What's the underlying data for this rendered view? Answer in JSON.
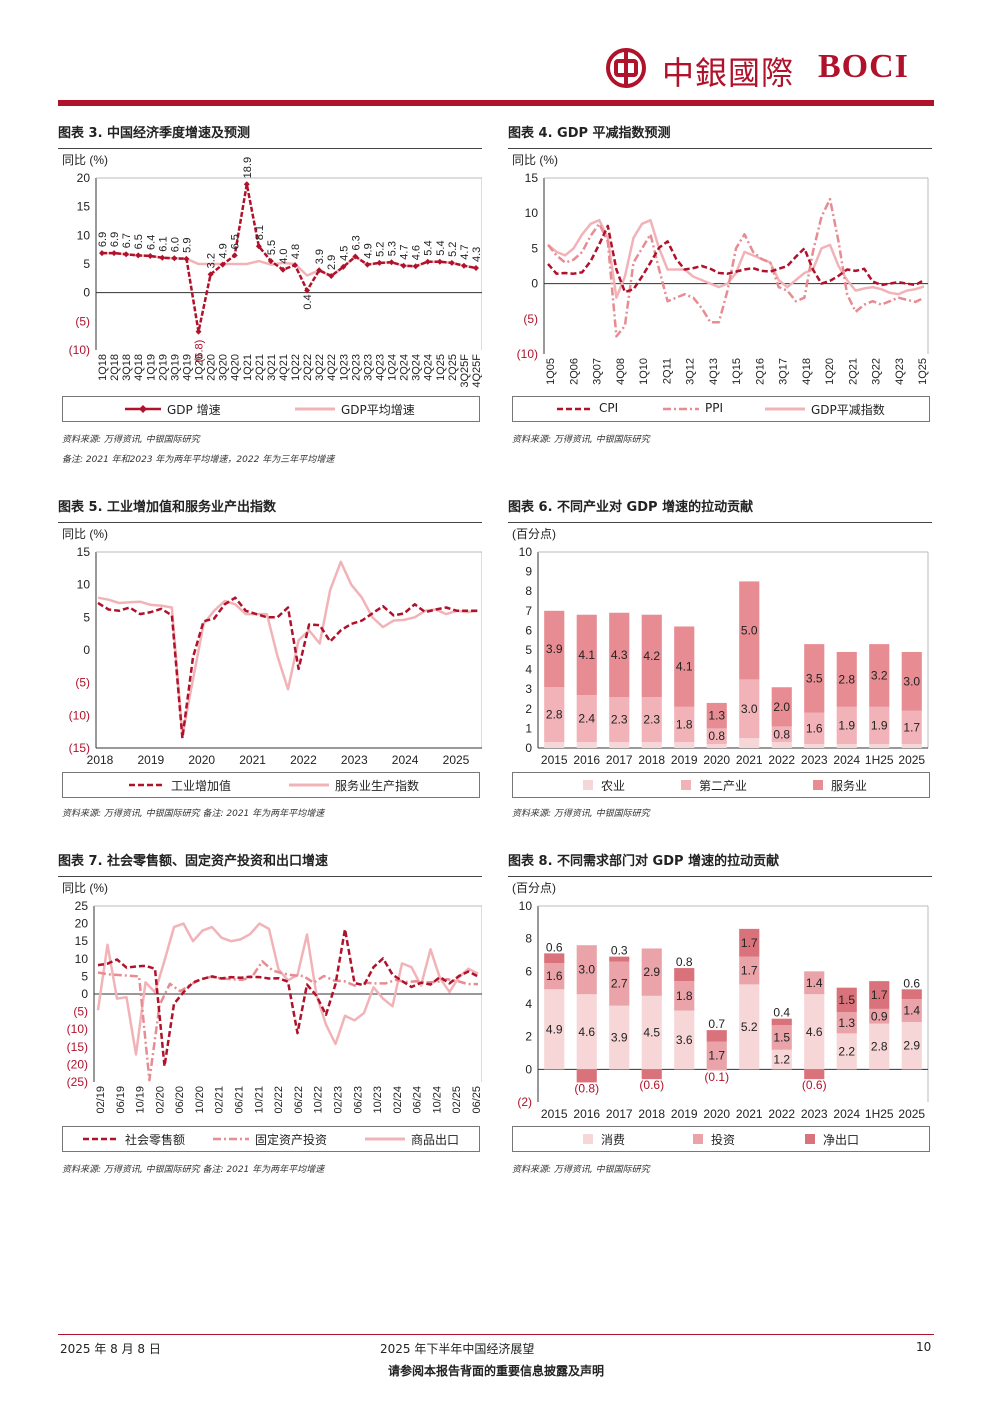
{
  "header": {
    "logo_cn": "中銀國際",
    "logo_en": "BOCI"
  },
  "footer": {
    "date": "2025 年 8 月 8 日",
    "title": "2025 年下半年中国经济展望",
    "page": "10",
    "disclaimer": "请参阅本报告背面的重要信息披露及声明"
  },
  "colors": {
    "primary": "#b0122b",
    "light": "#f2b3b8",
    "mid": "#e78c92",
    "pale": "#f7d6d8"
  },
  "charts": [
    {
      "title": "图表 3. 中国经济季度增速及预测",
      "unit": "同比 (%)",
      "source": "资料来源: 万得资讯, 中银国际研究",
      "note": "备注: 2021 年和2023 年为两年平均增速，2022 年为三年平均增速",
      "legend": [
        "GDP 增速",
        "GDP平均增速"
      ]
    },
    {
      "title": "图表 4. GDP 平减指数预测",
      "unit": "同比 (%)",
      "source": "资料来源: 万得资讯, 中银国际研究",
      "legend": [
        "CPI",
        "PPI",
        "GDP平减指数"
      ]
    },
    {
      "title": "图表 5. 工业增加值和服务业产出指数",
      "unit": "同比 (%)",
      "source": "资料来源: 万得资讯, 中银国际研究 备注: 2021 年为两年平均增速",
      "legend": [
        "工业增加值",
        "服务业生产指数"
      ]
    },
    {
      "title": "图表 6. 不同产业对 GDP 增速的拉动贡献",
      "unit": "(百分点)",
      "source": "资料来源: 万得资讯, 中银国际研究",
      "legend": [
        "农业",
        "第二产业",
        "服务业"
      ]
    },
    {
      "title": "图表 7. 社会零售额、固定资产投资和出口增速",
      "unit": "同比 (%)",
      "source": "资料来源: 万得资讯, 中银国际研究 备注: 2021 年为两年平均增速",
      "legend": [
        "社会零售额",
        "固定资产投资",
        "商品出口"
      ]
    },
    {
      "title": "图表 8. 不同需求部门对 GDP 增速的拉动贡献",
      "unit": "(百分点)",
      "source": "资料来源: 万得资讯, 中银国际研究",
      "legend": [
        "消费",
        "投资",
        "净出口"
      ]
    }
  ],
  "chart_data": [
    {
      "type": "line",
      "title": "图表 3. 中国经济季度增速及预测",
      "ylabel": "同比 (%)",
      "ylim": [
        -10,
        20
      ],
      "yticks": [
        "20",
        "15",
        "10",
        "5",
        "0",
        "(5)",
        "(10)"
      ],
      "x": [
        "1Q18",
        "2Q18",
        "3Q18",
        "4Q18",
        "1Q19",
        "2Q19",
        "3Q19",
        "4Q19",
        "1Q20",
        "2Q20",
        "3Q20",
        "4Q20",
        "1Q21",
        "2Q21",
        "3Q21",
        "4Q21",
        "1Q22",
        "2Q22",
        "3Q22",
        "4Q22",
        "1Q23",
        "2Q23",
        "3Q23",
        "4Q23",
        "1Q24",
        "2Q24",
        "3Q24",
        "4Q24",
        "1Q25",
        "2Q25",
        "3Q25F",
        "4Q25F"
      ],
      "series": [
        {
          "name": "GDP 增速",
          "values": [
            6.9,
            6.9,
            6.7,
            6.5,
            6.4,
            6.1,
            6.0,
            5.9,
            -6.8,
            3.2,
            4.9,
            6.5,
            18.9,
            8.1,
            5.5,
            4.0,
            4.8,
            0.4,
            3.9,
            2.9,
            4.5,
            6.3,
            4.9,
            5.2,
            5.3,
            4.7,
            4.6,
            5.4,
            5.4,
            5.2,
            4.7,
            4.3
          ]
        },
        {
          "name": "GDP平均增速",
          "values": [
            6.9,
            6.9,
            6.7,
            6.5,
            6.4,
            6.1,
            6.0,
            5.9,
            5.0,
            5.0,
            5.0,
            5.0,
            5.0,
            5.5,
            4.9,
            5.2,
            5.0,
            3.0,
            3.9,
            2.9,
            4.5,
            6.3,
            4.9,
            5.2,
            5.3,
            4.7,
            4.6,
            5.4,
            5.4,
            5.2,
            4.7,
            4.3
          ]
        }
      ],
      "labels": [
        "6.9",
        "6.9",
        "6.7",
        "6.5",
        "6.4",
        "6.1",
        "6.0",
        "5.9",
        "(6.8)",
        "3.2",
        "4.9",
        "6.5",
        "18.9",
        "8.1",
        "5.5",
        "4.0",
        "4.8",
        "0.4",
        "3.9",
        "2.9",
        "4.5",
        "6.3",
        "4.9",
        "5.2",
        "5.3",
        "4.7",
        "4.6",
        "5.4",
        "5.4",
        "5.2",
        "4.7",
        "4.3"
      ]
    },
    {
      "type": "line",
      "title": "图表 4. GDP 平减指数预测",
      "ylim": [
        -10,
        15
      ],
      "yticks": [
        "15",
        "10",
        "5",
        "0",
        "(5)",
        "(10)"
      ],
      "xticks": [
        "1Q05",
        "2Q06",
        "3Q07",
        "4Q08",
        "1Q10",
        "2Q11",
        "3Q12",
        "4Q13",
        "1Q15",
        "2Q16",
        "3Q17",
        "4Q18",
        "1Q20",
        "2Q21",
        "3Q22",
        "4Q23",
        "1Q25"
      ],
      "series": [
        {
          "name": "CPI",
          "values": [
            2.8,
            1.4,
            1.5,
            1.4,
            1.6,
            3.2,
            5.6,
            8.2,
            2.0,
            -1.2,
            -0.8,
            1.0,
            3.0,
            5.1,
            6.0,
            3.5,
            2.0,
            2.2,
            2.5,
            2.1,
            1.5,
            1.4,
            1.7,
            2.0,
            2.2,
            1.8,
            1.7,
            2.1,
            2.5,
            3.8,
            5.0,
            2.0,
            0.0,
            0.4,
            1.1,
            2.0,
            1.8,
            2.1,
            0.3,
            -0.2,
            0.0,
            0.2,
            0.0,
            -0.2,
            0.5
          ]
        },
        {
          "name": "PPI",
          "values": [
            5.5,
            4.0,
            3.0,
            3.4,
            4.5,
            6.8,
            8.5,
            6.0,
            -7.5,
            -6.0,
            3.0,
            5.0,
            7.0,
            2.0,
            -2.5,
            -2.0,
            -1.5,
            -2.0,
            -3.5,
            -5.5,
            -5.5,
            -1.0,
            5.0,
            7.0,
            4.5,
            3.5,
            3.0,
            -0.5,
            -1.0,
            -2.5,
            -2.0,
            4.5,
            9.5,
            12.0,
            6.0,
            -1.5,
            -4.0,
            -3.0,
            -2.5,
            -3.0,
            -2.5,
            -2.0,
            -2.3,
            -2.6,
            -2.0
          ]
        },
        {
          "name": "GDP平减指数",
          "values": [
            5.5,
            4.5,
            4.0,
            5.0,
            7.0,
            8.5,
            9.0,
            6.5,
            -2.0,
            1.0,
            6.5,
            8.5,
            9.0,
            5.0,
            2.0,
            2.0,
            2.0,
            1.0,
            0.5,
            0.0,
            -0.5,
            0.0,
            1.5,
            4.5,
            4.0,
            3.5,
            3.0,
            0.5,
            -0.5,
            0.5,
            1.5,
            2.0,
            5.0,
            5.5,
            2.5,
            0.5,
            -1.0,
            -0.7,
            -0.5,
            -0.8,
            -1.3,
            -1.5,
            -1.0,
            -0.8,
            -0.4
          ]
        }
      ]
    },
    {
      "type": "line",
      "title": "图表 5. 工业增加值和服务业产出指数",
      "ylabel": "同比 (%)",
      "ylim": [
        -15,
        15
      ],
      "yticks": [
        "15",
        "10",
        "5",
        "0",
        "(5)",
        "(10)",
        "(15)"
      ],
      "xticks": [
        "2018",
        "2019",
        "2020",
        "2021",
        "2022",
        "2023",
        "2024",
        "2025"
      ],
      "series": [
        {
          "name": "工业增加值",
          "values": [
            7.2,
            6.2,
            6.0,
            6.5,
            5.5,
            5.8,
            6.3,
            5.3,
            -13.5,
            -1.1,
            4.4,
            4.8,
            7.0,
            8.0,
            6.0,
            5.5,
            5.0,
            5.0,
            6.5,
            -2.9,
            3.9,
            3.8,
            1.3,
            3.0,
            4.0,
            4.5,
            5.6,
            6.7,
            5.3,
            5.6,
            7.0,
            5.8,
            6.2,
            6.5,
            6.0,
            6.0,
            6.0
          ]
        },
        {
          "name": "服务业生产指数",
          "values": [
            8.0,
            7.7,
            7.2,
            7.3,
            7.4,
            6.9,
            6.8,
            6.5,
            -13.0,
            -4.5,
            4.0,
            6.0,
            7.5,
            7.0,
            5.5,
            5.5,
            5.5,
            -0.9,
            -6.0,
            1.5,
            3.0,
            1.0,
            9.2,
            13.5,
            10.0,
            8.0,
            5.0,
            3.5,
            4.5,
            4.6,
            5.0,
            6.0,
            6.2,
            5.5,
            6.0,
            5.8,
            6.0
          ]
        }
      ]
    },
    {
      "type": "bar",
      "title": "图表 6. 不同产业对 GDP 增速的拉动贡献",
      "ylabel": "(百分点)",
      "ylim": [
        0,
        10
      ],
      "categories": [
        "2015",
        "2016",
        "2017",
        "2018",
        "2019",
        "2020",
        "2021",
        "2022",
        "2023",
        "2024",
        "1H25",
        "2025"
      ],
      "series": [
        {
          "name": "农业",
          "values": [
            0.3,
            0.3,
            0.3,
            0.3,
            0.3,
            0.2,
            0.5,
            0.3,
            0.2,
            0.2,
            0.2,
            0.2
          ]
        },
        {
          "name": "第二产业",
          "values": [
            2.8,
            2.4,
            2.3,
            2.3,
            1.8,
            0.8,
            3.0,
            0.8,
            1.6,
            1.9,
            1.9,
            1.7
          ]
        },
        {
          "name": "服务业",
          "values": [
            3.9,
            4.1,
            4.3,
            4.2,
            4.1,
            1.3,
            5.0,
            2.0,
            3.5,
            2.8,
            3.2,
            3.0
          ]
        }
      ]
    },
    {
      "type": "line",
      "title": "图表 7. 社会零售额、固定资产投资和出口增速",
      "ylabel": "同比 (%)",
      "ylim": [
        -25,
        25
      ],
      "yticks": [
        "25",
        "20",
        "15",
        "10",
        "5",
        "0",
        "(5)",
        "(10)",
        "(15)",
        "(20)",
        "(25)"
      ],
      "xticks": [
        "02/19",
        "06/19",
        "10/19",
        "02/20",
        "06/20",
        "10/20",
        "02/21",
        "06/21",
        "10/21",
        "02/22",
        "06/22",
        "10/22",
        "02/23",
        "06/23",
        "10/23",
        "02/24",
        "06/24",
        "10/24",
        "02/25",
        "06/25"
      ],
      "series": [
        {
          "name": "社会零售额",
          "values": [
            8.2,
            8.6,
            9.8,
            7.5,
            7.8,
            8.0,
            7.2,
            -20.5,
            -2.8,
            0.5,
            3.3,
            4.3,
            5.0,
            4.4,
            4.8,
            4.6,
            4.9,
            4.8,
            4.4,
            4.5,
            3.5,
            -11.1,
            2.7,
            -0.5,
            -5.9,
            2.8,
            18.4,
            3.1,
            2.5,
            7.6,
            10.1,
            5.5,
            3.7,
            2.0,
            3.2,
            2.7,
            4.8,
            3.0,
            5.1,
            6.4,
            5.0
          ]
        },
        {
          "name": "固定资产投资",
          "values": [
            6.1,
            5.6,
            5.4,
            5.2,
            5.0,
            -24.5,
            -3.1,
            2.9,
            0.8,
            2.6,
            4.2,
            4.9,
            4.4,
            4.2,
            4.0,
            4.9,
            9.3,
            6.7,
            5.8,
            5.3,
            5.1,
            3.2,
            5.1,
            3.8,
            3.6,
            2.4,
            3.2,
            3.0,
            3.0,
            4.0,
            3.4,
            3.6,
            3.3,
            3.4,
            4.2,
            3.7,
            2.8,
            2.8
          ]
        },
        {
          "name": "商品出口",
          "values": [
            -4.6,
            14.0,
            -1.3,
            -0.9,
            -17.2,
            3.3,
            0.5,
            9.5,
            19.0,
            20.0,
            15.0,
            18.0,
            19.0,
            16.0,
            15.0,
            15.5,
            17.0,
            20.0,
            18.5,
            7.0,
            3.9,
            5.4,
            16.9,
            -0.3,
            -8.7,
            -14.2,
            -6.2,
            -7.5,
            -5.4,
            1.9,
            -1.3,
            -3.5,
            8.7,
            7.6,
            2.4,
            12.7,
            4.5,
            0.6,
            4.8,
            7.2,
            5.8
          ]
        }
      ]
    },
    {
      "type": "bar",
      "title": "图表 8. 不同需求部门对 GDP 增速的拉动贡献",
      "ylabel": "(百分点)",
      "ylim": [
        -2,
        10
      ],
      "categories": [
        "2015",
        "2016",
        "2017",
        "2018",
        "2019",
        "2020",
        "2021",
        "2022",
        "2023",
        "2024",
        "1H25",
        "2025"
      ],
      "series": [
        {
          "name": "消费",
          "values": [
            4.9,
            4.6,
            3.9,
            4.5,
            3.6,
            -0.1,
            5.2,
            1.2,
            4.6,
            2.2,
            2.8,
            2.9
          ]
        },
        {
          "name": "投资",
          "values": [
            1.6,
            3.0,
            2.7,
            2.9,
            1.8,
            1.7,
            1.7,
            1.5,
            1.4,
            1.3,
            0.9,
            1.4
          ]
        },
        {
          "name": "净出口",
          "values": [
            0.6,
            -0.8,
            0.3,
            -0.6,
            0.8,
            0.7,
            1.7,
            0.4,
            -0.6,
            1.5,
            1.7,
            0.6
          ]
        }
      ],
      "labels": [
        [
          "4.9",
          "4.6",
          "3.9",
          "4.5",
          "3.6",
          "(0.1)",
          "5.2",
          "1.2",
          "4.6",
          "2.2",
          "2.8",
          "2.9"
        ],
        [
          "1.6",
          "3.0",
          "2.7",
          "2.9",
          "1.8",
          "1.7",
          "1.7",
          "1.5",
          "1.4",
          "1.3",
          "0.9",
          "1.4"
        ],
        [
          "0.6",
          "(0.8)",
          "0.3",
          "(0.6)",
          "0.8",
          "0.7",
          "1.7",
          "0.4",
          "(0.6)",
          "1.5",
          "1.7",
          "0.6"
        ]
      ]
    }
  ]
}
